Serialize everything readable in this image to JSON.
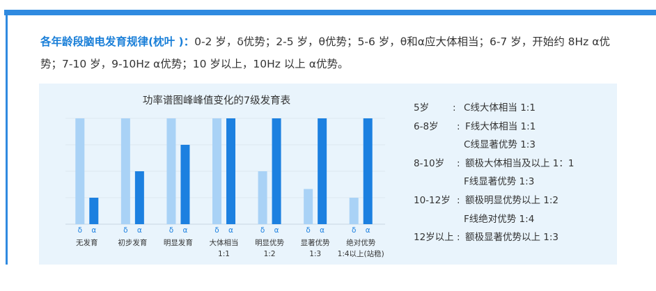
{
  "intro": {
    "heading": "各年龄段脑电发育规律(枕叶 )：",
    "text": "0-2 岁，δ优势；2-5 岁，θ优势；5-6 岁，θ和α应大体相当；6-7 岁，开始约 8Hz α优势；7-10 岁，9-10Hz  α优势；10 岁以上，10Hz 以上 α优势。"
  },
  "colors": {
    "accent": "#2f8ae0",
    "heading": "#1a7fd8",
    "panel_bg": "#e9f4fc",
    "delta_bar": "#a9d2f6",
    "alpha_bar": "#1c80e0"
  },
  "chart_data": {
    "type": "bar",
    "title": "功率谱图峰峰值变化的7级发育表",
    "categories": [
      "无发育",
      "初步发育",
      "明显发育",
      "大体相当\n1:1",
      "明显优势\n1:2",
      "显著优势\n1:3",
      "绝对优势\n1:4以上(站稳)"
    ],
    "category_lines": [
      [
        "无发育"
      ],
      [
        "初步发育"
      ],
      [
        "明显发育"
      ],
      [
        "大体相当",
        "1:1"
      ],
      [
        "明显优势",
        "1:2"
      ],
      [
        "显著优势",
        "1:3"
      ],
      [
        "绝对优势",
        "1:4以上(站稳)"
      ]
    ],
    "series": [
      {
        "name": "δ",
        "values": [
          4,
          4,
          4,
          4,
          2,
          1.33,
          1
        ]
      },
      {
        "name": "α",
        "values": [
          1,
          2,
          3,
          4,
          4,
          4,
          4
        ]
      }
    ],
    "ylim": [
      0,
      4
    ],
    "xlabel": "",
    "ylabel": "",
    "grid": true
  },
  "legend": [
    {
      "age": "5岁",
      "colon": ":",
      "desc": "C线大体相当 1:1"
    },
    {
      "age": "6-8岁",
      "colon": ":",
      "desc": "F线大体相当 1:1"
    },
    {
      "age": "",
      "colon": "",
      "desc": "C线显著优势 1:3"
    },
    {
      "age": "8-10岁",
      "colon": ":",
      "desc": "额极大体相当及以上  1：1"
    },
    {
      "age": "",
      "colon": "",
      "desc": "F线显著优势 1:3"
    },
    {
      "age": "10-12岁",
      "colon": ":",
      "desc": "额极明显优势以上 1:2"
    },
    {
      "age": "",
      "colon": "",
      "desc": "F线绝对优势 1:4"
    },
    {
      "age": "12岁以上",
      "colon": ":",
      "desc": "额极显著优势以上 1:3"
    }
  ]
}
